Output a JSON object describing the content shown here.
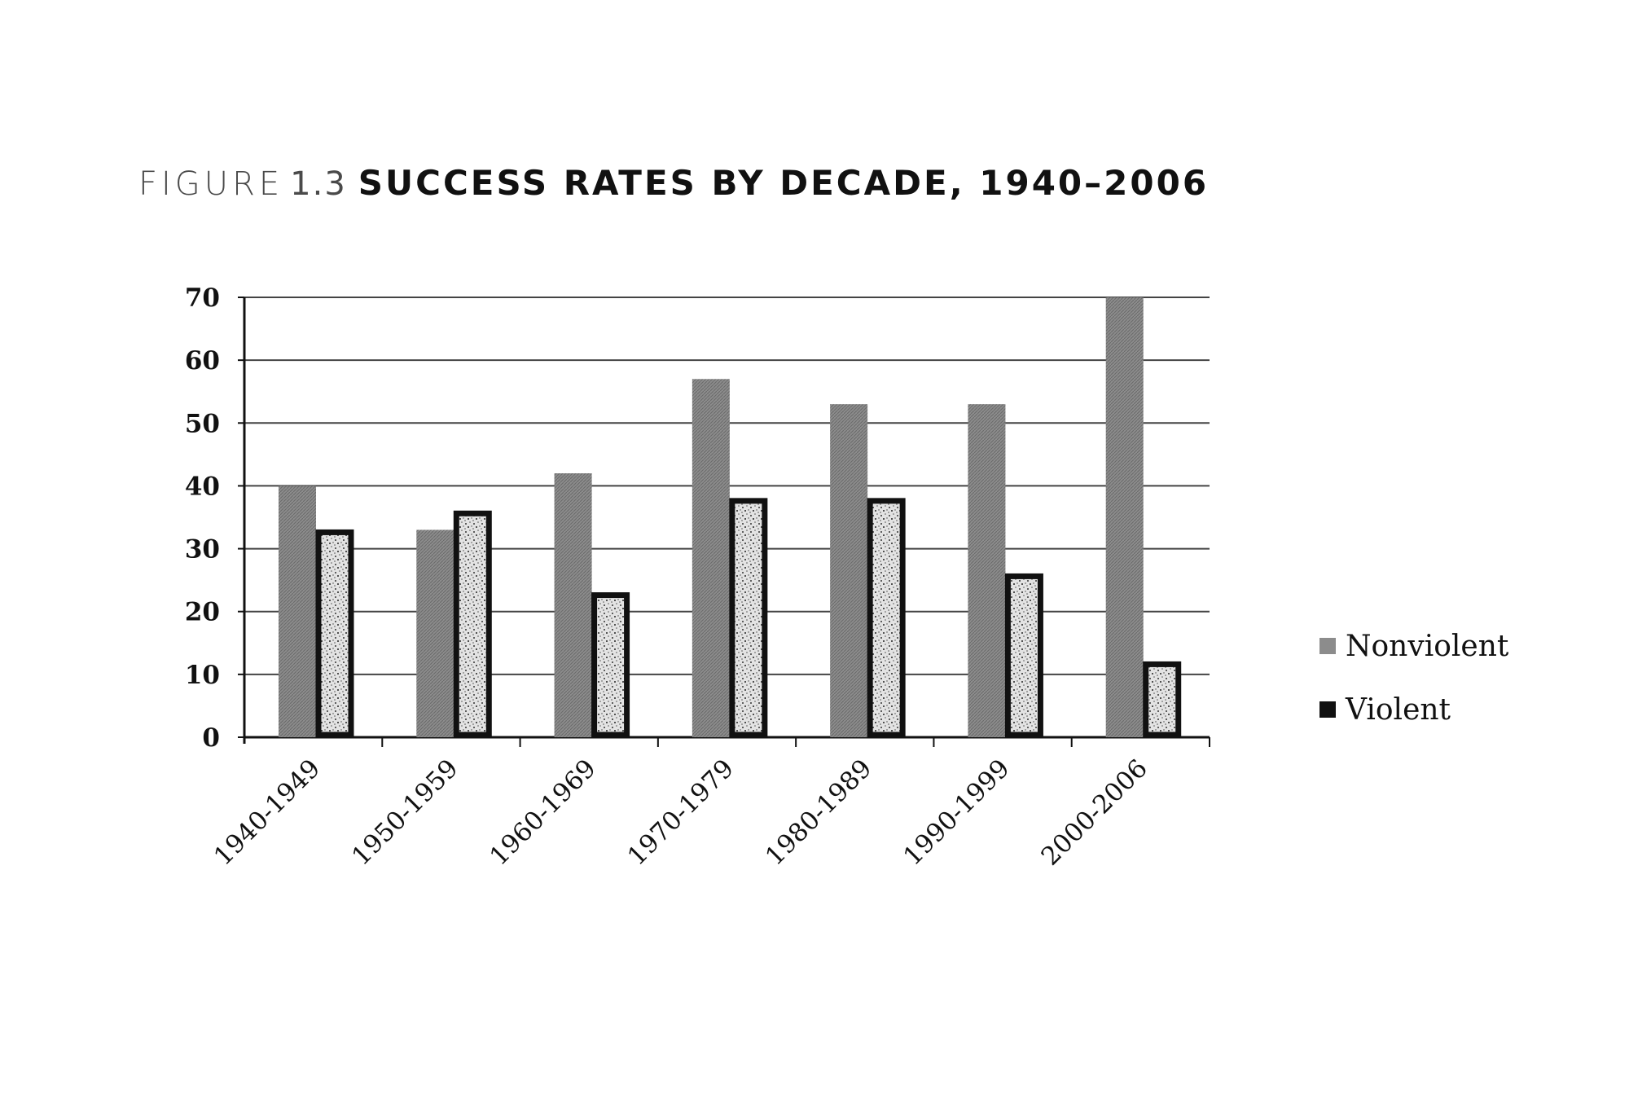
{
  "figure": {
    "label": "FIGURE",
    "number": "1.3",
    "title": "SUCCESS RATES BY DECADE, 1940–2006"
  },
  "colors": {
    "nonviolent": "#8c8c8c",
    "violent_fill": "#d9d9d9",
    "violent_border": "#111111",
    "grid": "#444444"
  },
  "chart_data": {
    "type": "bar",
    "title": "SUCCESS RATES BY DECADE, 1940–2006",
    "xlabel": "",
    "ylabel": "",
    "ylim": [
      0,
      70
    ],
    "yticks": [
      0,
      10,
      20,
      30,
      40,
      50,
      60,
      70
    ],
    "grid": true,
    "legend_position": "right",
    "categories": [
      "1940-1949",
      "1950-1959",
      "1960-1969",
      "1970-1979",
      "1980-1989",
      "1990-1999",
      "2000-2006"
    ],
    "series": [
      {
        "name": "Nonviolent",
        "values": [
          40,
          33,
          42,
          57,
          53,
          53,
          70
        ]
      },
      {
        "name": "Violent",
        "values": [
          33,
          36,
          23,
          38,
          38,
          26,
          12
        ]
      }
    ]
  }
}
